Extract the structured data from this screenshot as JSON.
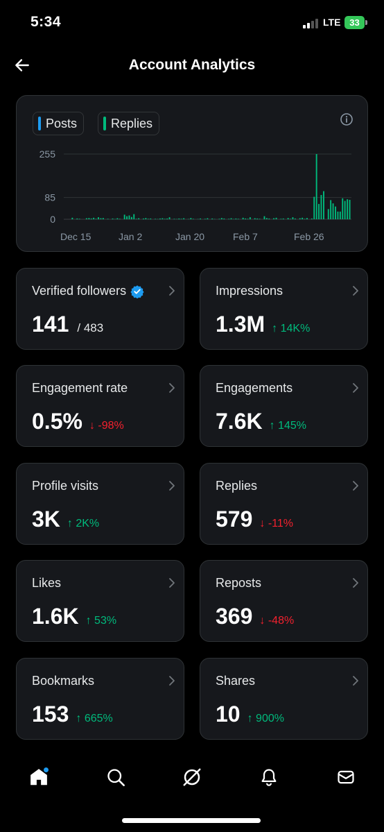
{
  "status": {
    "time": "5:34",
    "network": "LTE",
    "battery": "33"
  },
  "header": {
    "title": "Account Analytics"
  },
  "chart": {
    "legend": [
      {
        "label": "Posts",
        "color": "#1d9bf0"
      },
      {
        "label": "Replies",
        "color": "#00ba7c"
      }
    ],
    "chart_data": {
      "type": "bar",
      "y_ticks": [
        0,
        85,
        255
      ],
      "ylim": [
        0,
        300
      ],
      "x_ticks": [
        "Dec 15",
        "Jan 2",
        "Jan 20",
        "Feb 7",
        "Feb 26"
      ],
      "legend_position": "top-left",
      "grid": true,
      "series": [
        {
          "name": "Replies",
          "color": "#00ba7c",
          "values": [
            0,
            6,
            0,
            3,
            2,
            0,
            0,
            4,
            5,
            3,
            6,
            2,
            8,
            4,
            5,
            0,
            2,
            0,
            3,
            1,
            4,
            2,
            0,
            18,
            12,
            15,
            9,
            20,
            2,
            4,
            0,
            3,
            5,
            2,
            3,
            0,
            2,
            1,
            3,
            4,
            2,
            3,
            8,
            0,
            2,
            1,
            3,
            2,
            4,
            0,
            1,
            5,
            2,
            0,
            1,
            3,
            0,
            2,
            4,
            0,
            3,
            1,
            0,
            2,
            5,
            3,
            0,
            2,
            4,
            1,
            3,
            2,
            0,
            6,
            3,
            2,
            8,
            0,
            4,
            3,
            2,
            0,
            12,
            5,
            3,
            0,
            4,
            6,
            0,
            2,
            3,
            0,
            5,
            2,
            8,
            3,
            0,
            4,
            6,
            2,
            5,
            0,
            3,
            88,
            255,
            60,
            95,
            110,
            0,
            40,
            75,
            62,
            50,
            30,
            30,
            82,
            72,
            78,
            76
          ]
        }
      ]
    }
  },
  "stats": [
    {
      "label": "Verified followers",
      "value": "141",
      "total": "/ 483",
      "verified": true,
      "change": "",
      "direction": ""
    },
    {
      "label": "Impressions",
      "value": "1.3M",
      "change": "14K%",
      "direction": "up"
    },
    {
      "label": "Engagement rate",
      "value": "0.5%",
      "change": "-98%",
      "direction": "down"
    },
    {
      "label": "Engagements",
      "value": "7.6K",
      "change": "145%",
      "direction": "up"
    },
    {
      "label": "Profile visits",
      "value": "3K",
      "change": "2K%",
      "direction": "up"
    },
    {
      "label": "Replies",
      "value": "579",
      "change": "-11%",
      "direction": "down"
    },
    {
      "label": "Likes",
      "value": "1.6K",
      "change": "53%",
      "direction": "up"
    },
    {
      "label": "Reposts",
      "value": "369",
      "change": "-48%",
      "direction": "down"
    },
    {
      "label": "Bookmarks",
      "value": "153",
      "change": "665%",
      "direction": "up"
    },
    {
      "label": "Shares",
      "value": "10",
      "change": "900%",
      "direction": "up"
    }
  ],
  "nav": {
    "items": [
      "home-icon",
      "search-icon",
      "grok-icon",
      "notifications-icon",
      "messages-icon"
    ]
  }
}
